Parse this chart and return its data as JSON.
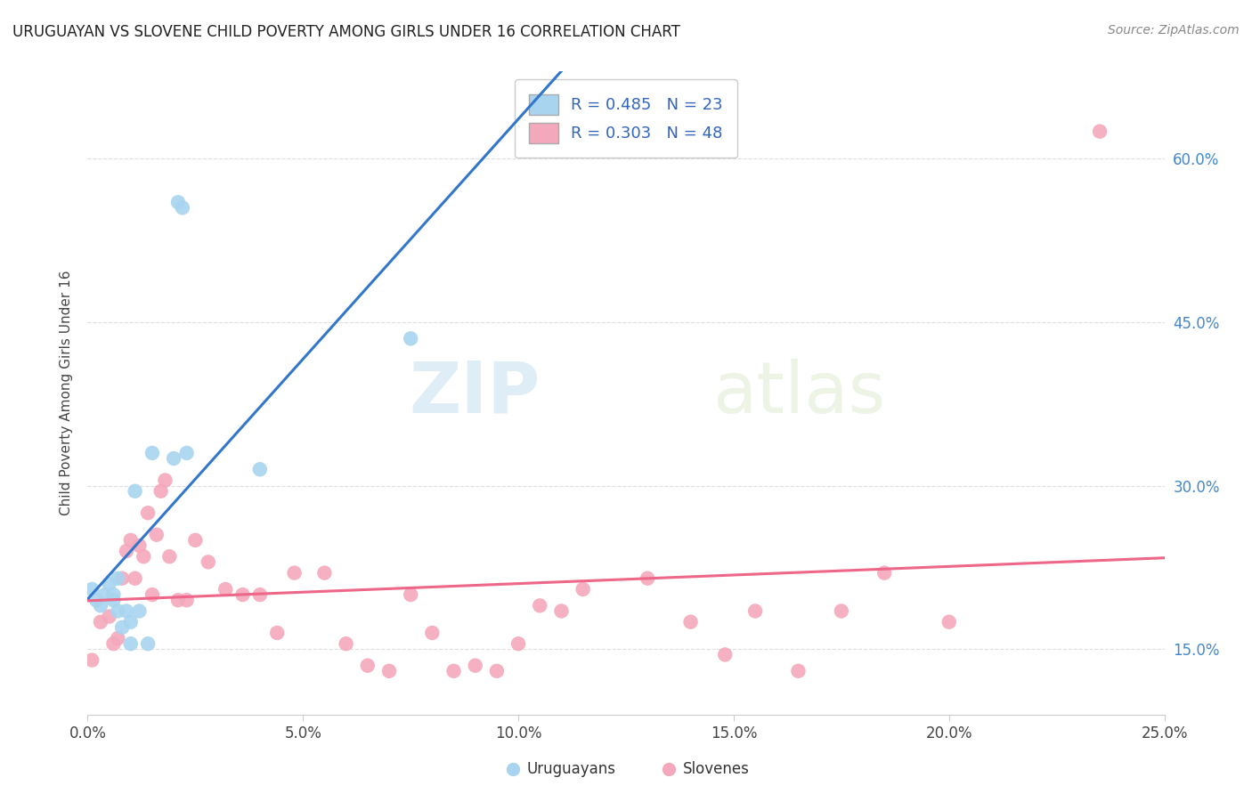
{
  "title": "URUGUAYAN VS SLOVENE CHILD POVERTY AMONG GIRLS UNDER 16 CORRELATION CHART",
  "source": "Source: ZipAtlas.com",
  "ylabel": "Child Poverty Among Girls Under 16",
  "xlabel_ticks": [
    "0.0%",
    "5.0%",
    "10.0%",
    "15.0%",
    "20.0%",
    "25.0%"
  ],
  "xlabel_vals": [
    0.0,
    0.05,
    0.1,
    0.15,
    0.2,
    0.25
  ],
  "ylabel_ticks": [
    "15.0%",
    "30.0%",
    "45.0%",
    "60.0%"
  ],
  "ylabel_vals": [
    0.15,
    0.3,
    0.45,
    0.6
  ],
  "xlim": [
    0.0,
    0.25
  ],
  "ylim": [
    0.09,
    0.68
  ],
  "legend_label1": "Uruguayans",
  "legend_label2": "Slovenes",
  "R1": "R = 0.485",
  "N1": "N = 23",
  "R2": "R = 0.303",
  "N2": "N = 48",
  "color_blue": "#a8d4f0",
  "color_pink": "#f4a8bb",
  "line_blue": "#3377cc",
  "line_pink": "#ee6688",
  "background": "#ffffff",
  "grid_color": "#dddddd",
  "uruguayan_x": [
    0.001,
    0.002,
    0.003,
    0.004,
    0.005,
    0.006,
    0.006,
    0.007,
    0.007,
    0.008,
    0.009,
    0.01,
    0.01,
    0.011,
    0.012,
    0.014,
    0.015,
    0.02,
    0.021,
    0.022,
    0.023,
    0.04,
    0.075
  ],
  "uruguayan_y": [
    0.205,
    0.195,
    0.19,
    0.2,
    0.21,
    0.2,
    0.195,
    0.215,
    0.185,
    0.17,
    0.185,
    0.155,
    0.175,
    0.295,
    0.185,
    0.155,
    0.33,
    0.325,
    0.56,
    0.555,
    0.33,
    0.315,
    0.435
  ],
  "slovene_x": [
    0.001,
    0.003,
    0.005,
    0.006,
    0.007,
    0.008,
    0.009,
    0.01,
    0.011,
    0.012,
    0.013,
    0.014,
    0.015,
    0.016,
    0.017,
    0.018,
    0.019,
    0.021,
    0.023,
    0.025,
    0.028,
    0.032,
    0.036,
    0.04,
    0.044,
    0.048,
    0.055,
    0.06,
    0.065,
    0.07,
    0.075,
    0.08,
    0.085,
    0.09,
    0.095,
    0.1,
    0.105,
    0.11,
    0.115,
    0.13,
    0.14,
    0.148,
    0.155,
    0.165,
    0.175,
    0.185,
    0.2,
    0.235
  ],
  "slovene_y": [
    0.14,
    0.175,
    0.18,
    0.155,
    0.16,
    0.215,
    0.24,
    0.25,
    0.215,
    0.245,
    0.235,
    0.275,
    0.2,
    0.255,
    0.295,
    0.305,
    0.235,
    0.195,
    0.195,
    0.25,
    0.23,
    0.205,
    0.2,
    0.2,
    0.165,
    0.22,
    0.22,
    0.155,
    0.135,
    0.13,
    0.2,
    0.165,
    0.13,
    0.135,
    0.13,
    0.155,
    0.19,
    0.185,
    0.205,
    0.215,
    0.175,
    0.145,
    0.185,
    0.13,
    0.185,
    0.22,
    0.175,
    0.625
  ],
  "watermark_zip": "ZIP",
  "watermark_atlas": "atlas"
}
